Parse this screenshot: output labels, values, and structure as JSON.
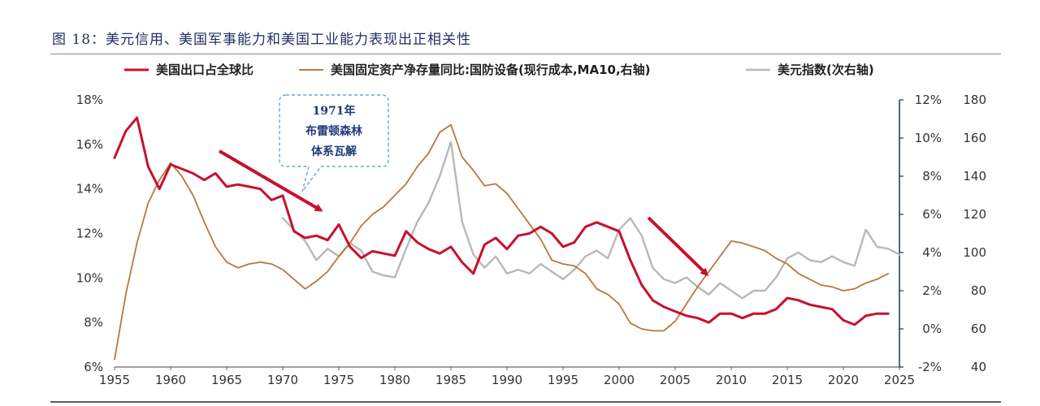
{
  "figure": {
    "title": "图 18：美元信用、美国军事能力和美国工业能力表现出正相关性"
  },
  "chart_data": {
    "type": "line",
    "title": "",
    "xlim": [
      1955,
      2025
    ],
    "x_ticks": [
      "1955",
      "1960",
      "1965",
      "1970",
      "1975",
      "1980",
      "1985",
      "1990",
      "1995",
      "2000",
      "2005",
      "2010",
      "2015",
      "2020",
      "2025"
    ],
    "y_left": {
      "lim": [
        6,
        18
      ],
      "ticks": [
        "6%",
        "8%",
        "10%",
        "12%",
        "14%",
        "16%",
        "18%"
      ]
    },
    "y_right1": {
      "lim": [
        -2,
        12
      ],
      "ticks": [
        "-2%",
        "0%",
        "2%",
        "4%",
        "6%",
        "8%",
        "10%",
        "12%"
      ]
    },
    "y_right2": {
      "lim": [
        40,
        180
      ],
      "ticks": [
        "40",
        "60",
        "80",
        "100",
        "120",
        "140",
        "160",
        "180"
      ]
    },
    "legend_position": "top",
    "series": [
      {
        "name": "美国出口占全球比",
        "axis": "left",
        "color": "#c8102e",
        "x": [
          1955,
          1956,
          1957,
          1958,
          1959,
          1960,
          1961,
          1962,
          1963,
          1964,
          1965,
          1966,
          1967,
          1968,
          1969,
          1970,
          1971,
          1972,
          1973,
          1974,
          1975,
          1976,
          1977,
          1978,
          1979,
          1980,
          1981,
          1982,
          1983,
          1984,
          1985,
          1986,
          1987,
          1988,
          1989,
          1990,
          1991,
          1992,
          1993,
          1994,
          1995,
          1996,
          1997,
          1998,
          1999,
          2000,
          2001,
          2002,
          2003,
          2004,
          2005,
          2006,
          2007,
          2008,
          2009,
          2010,
          2011,
          2012,
          2013,
          2014,
          2015,
          2016,
          2017,
          2018,
          2019,
          2020,
          2021,
          2022,
          2023,
          2024
        ],
        "values": [
          15.4,
          16.6,
          17.2,
          15.0,
          14.0,
          15.1,
          14.9,
          14.7,
          14.4,
          14.7,
          14.1,
          14.2,
          14.1,
          14.0,
          13.5,
          13.7,
          12.1,
          11.8,
          11.9,
          11.7,
          12.4,
          11.4,
          10.9,
          11.2,
          11.1,
          11.0,
          12.1,
          11.6,
          11.3,
          11.1,
          11.4,
          10.7,
          10.2,
          11.5,
          11.8,
          11.3,
          11.9,
          12.0,
          12.3,
          12.0,
          11.4,
          11.6,
          12.3,
          12.5,
          12.3,
          12.1,
          10.8,
          9.7,
          9.0,
          8.7,
          8.5,
          8.3,
          8.2,
          8.0,
          8.4,
          8.4,
          8.2,
          8.4,
          8.4,
          8.6,
          9.1,
          9.0,
          8.8,
          8.7,
          8.6,
          8.1,
          7.9,
          8.3,
          8.4,
          8.4
        ]
      },
      {
        "name": "美国固定资产净存量同比:国防设备(现行成本,MA10,右轴)",
        "axis": "right1",
        "color": "#b8783d",
        "x": [
          1955,
          1956,
          1957,
          1958,
          1959,
          1960,
          1961,
          1962,
          1963,
          1964,
          1965,
          1966,
          1967,
          1968,
          1969,
          1970,
          1971,
          1972,
          1973,
          1974,
          1975,
          1976,
          1977,
          1978,
          1979,
          1980,
          1981,
          1982,
          1983,
          1984,
          1985,
          1986,
          1987,
          1988,
          1989,
          1990,
          1991,
          1992,
          1993,
          1994,
          1995,
          1996,
          1997,
          1998,
          1999,
          2000,
          2001,
          2002,
          2003,
          2004,
          2005,
          2006,
          2007,
          2008,
          2009,
          2010,
          2011,
          2012,
          2013,
          2014,
          2015,
          2016,
          2017,
          2018,
          2019,
          2020,
          2021,
          2022,
          2023,
          2024
        ],
        "values": [
          -1.6,
          1.8,
          4.5,
          6.6,
          7.8,
          8.7,
          8.0,
          7.0,
          5.6,
          4.3,
          3.5,
          3.2,
          3.4,
          3.5,
          3.4,
          3.1,
          2.6,
          2.1,
          2.5,
          3.0,
          3.8,
          4.5,
          5.4,
          6.0,
          6.4,
          7.0,
          7.6,
          8.5,
          9.2,
          10.3,
          10.7,
          9.0,
          8.3,
          7.5,
          7.6,
          7.1,
          6.3,
          5.5,
          4.7,
          3.6,
          3.4,
          3.3,
          2.9,
          2.1,
          1.8,
          1.3,
          0.3,
          0.0,
          -0.1,
          -0.1,
          0.4,
          1.3,
          2.2,
          3.0,
          3.8,
          4.6,
          4.5,
          4.3,
          4.1,
          3.7,
          3.4,
          2.9,
          2.6,
          2.3,
          2.2,
          2.0,
          2.1,
          2.4,
          2.6,
          2.9
        ]
      },
      {
        "name": "美元指数(次右轴)",
        "axis": "right2",
        "color": "#b8b8b8",
        "x": [
          1970,
          1971,
          1972,
          1973,
          1974,
          1975,
          1976,
          1977,
          1978,
          1979,
          1980,
          1981,
          1982,
          1983,
          1984,
          1985,
          1986,
          1987,
          1988,
          1989,
          1990,
          1991,
          1992,
          1993,
          1994,
          1995,
          1996,
          1997,
          1998,
          1999,
          2000,
          2001,
          2002,
          2003,
          2004,
          2005,
          2006,
          2007,
          2008,
          2009,
          2010,
          2011,
          2012,
          2013,
          2014,
          2015,
          2016,
          2017,
          2018,
          2019,
          2020,
          2021,
          2022,
          2023,
          2024,
          2025
        ],
        "values": [
          118,
          112,
          106,
          96,
          102,
          98,
          105,
          101,
          90,
          88,
          87,
          102,
          116,
          126,
          140,
          158,
          116,
          99,
          92,
          98,
          89,
          91,
          89,
          94,
          90,
          86,
          91,
          98,
          101,
          97,
          112,
          118,
          109,
          92,
          86,
          84,
          87,
          82,
          78,
          84,
          80,
          76,
          80,
          80,
          87,
          97,
          100,
          96,
          95,
          98,
          95,
          93,
          112,
          103,
          102,
          99
        ]
      }
    ],
    "annotations": [
      {
        "lines": [
          "1971年",
          "布雷顿森林",
          "体系瓦解"
        ]
      }
    ]
  }
}
